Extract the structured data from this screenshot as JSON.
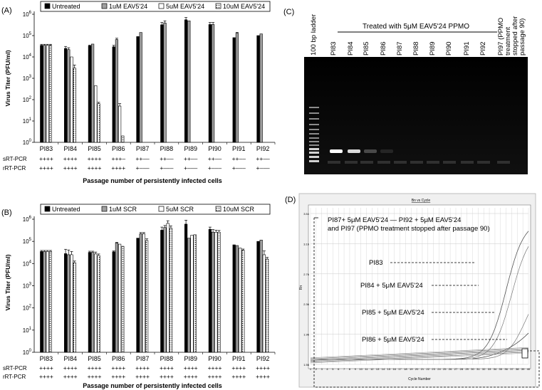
{
  "panel_a": {
    "letter": "(A)",
    "legend": [
      "Untreated",
      "1uM EAV5'24",
      "5uM EAV5'24",
      "10uM EAV5'24"
    ],
    "ylabel": "Virus Titer (PFU/ml)",
    "xlabel": "Passage number of persistently infected cells",
    "row_labels": [
      "sRT-PCR",
      "rRT-PCR"
    ],
    "s_rows": [
      "++++",
      "++++",
      "++++",
      "+++–",
      "++––",
      "++––",
      "++––",
      "++––",
      "++––",
      "++––"
    ],
    "r_rows": [
      "++++",
      "++++",
      "++++",
      "++++",
      "+–––",
      "+–––",
      "+–––",
      "+–––",
      "+–––",
      "+–––"
    ]
  },
  "panel_b": {
    "letter": "(B)",
    "legend": [
      "Untreated",
      "1uM SCR",
      "5uM SCR",
      "10uM SCR"
    ],
    "ylabel": "Virus Titer (PFU/ml)",
    "xlabel": "Passage number of persistently infected cells",
    "row_labels": [
      "sRT-PCR",
      "rRT-PCR"
    ],
    "s_rows": [
      "++++",
      "++++",
      "++++",
      "++++",
      "++++",
      "++++",
      "++++",
      "++++",
      "++++",
      "++++"
    ],
    "r_rows": [
      "++++",
      "++++",
      "++++",
      "++++",
      "++++",
      "++++",
      "++++",
      "++++",
      "++++",
      "++++"
    ]
  },
  "panel_c": {
    "letter": "(C)",
    "header": "Treated with 5μM EAV5'24 PPMO",
    "lanes": [
      "100 bp ladder",
      "PI83",
      "PI84",
      "PI85",
      "PI86",
      "PI87",
      "PI88",
      "PI89",
      "PI90",
      "PI91",
      "PI92",
      "PI97 (PPMO treatment stopped after passage 90)"
    ],
    "lane_last_lines": [
      "PI97 (PPMO",
      "treatment",
      "stopped after",
      "passage 90)"
    ]
  },
  "panel_d": {
    "letter": "(D)",
    "plot_title": "Bn vs Cycle",
    "xlabel": "Cycle Number",
    "ylabel": "Rn",
    "yticks": [
      "3.54",
      "3.16",
      "2.76",
      "2.36",
      "1.96",
      "1.56"
    ],
    "annotations": [
      "PI87+ 5μM EAV5'24 — PI92 + 5μM EAV5'24",
      "and PI97 (PPMO treatment stopped after passage 90)",
      "PI83",
      "PI84 + 5μM EAV5'24",
      "PI85 + 5μM EAV5'24",
      "PI86 + 5μM EAV5'24"
    ]
  },
  "chart_data": [
    {
      "type": "bar",
      "title": "",
      "ylabel": "Virus Titer (PFU/ml)",
      "xlabel": "Passage number of persistently infected cells",
      "yscale": "log",
      "ylim": [
        1,
        1000000
      ],
      "ytick_exponents": [
        0,
        1,
        2,
        3,
        4,
        5,
        6
      ],
      "categories": [
        "PI83",
        "PI84",
        "PI85",
        "PI86",
        "PI87",
        "PI88",
        "PI89",
        "PI90",
        "PI91",
        "PI92"
      ],
      "series": [
        {
          "name": "Untreated",
          "values": [
            35000,
            25000,
            33000,
            30000,
            90000,
            320000,
            550000,
            330000,
            80000,
            100000
          ],
          "errors": [
            4000,
            6000,
            3000,
            5000,
            0,
            90000,
            150000,
            80000,
            0,
            0
          ]
        },
        {
          "name": "1uM EAV5'24",
          "values": [
            35000,
            22000,
            40000,
            65000,
            140000,
            390000,
            490000,
            330000,
            130000,
            120000
          ],
          "errors": [
            4000,
            5000,
            0,
            10000,
            0,
            100000,
            0,
            80000,
            10000,
            0
          ]
        },
        {
          "name": "5uM EAV5'24",
          "values": [
            35000,
            10000,
            450,
            50,
            null,
            null,
            null,
            null,
            null,
            null
          ],
          "errors": [
            4000,
            0,
            0,
            15,
            0,
            0,
            0,
            0,
            0,
            0
          ]
        },
        {
          "name": "10uM EAV5'24",
          "values": [
            35000,
            3000,
            65,
            2,
            null,
            null,
            null,
            null,
            null,
            null
          ],
          "errors": [
            4000,
            1200,
            10,
            0,
            0,
            0,
            0,
            0,
            0,
            0
          ]
        }
      ],
      "legend_position": "top"
    },
    {
      "type": "bar",
      "title": "",
      "ylabel": "Virus Titer (PFU/ml)",
      "xlabel": "Passage number of persistently infected cells",
      "yscale": "log",
      "ylim": [
        1,
        1000000
      ],
      "ytick_exponents": [
        0,
        1,
        2,
        3,
        4,
        5,
        6
      ],
      "categories": [
        "PI83",
        "PI84",
        "PI85",
        "PI86",
        "PI87",
        "PI88",
        "PI89",
        "PI90",
        "PI91",
        "PI92"
      ],
      "series": [
        {
          "name": "Untreated",
          "values": [
            35000,
            28000,
            32000,
            34000,
            140000,
            320000,
            600000,
            350000,
            70000,
            100000
          ],
          "errors": [
            4000,
            16000,
            4000,
            3000,
            0,
            120000,
            300000,
            90000,
            0,
            0
          ]
        },
        {
          "name": "1uM SCR",
          "values": [
            35000,
            25000,
            32000,
            85000,
            220000,
            420000,
            140000,
            260000,
            65000,
            115000
          ],
          "errors": [
            4000,
            16000,
            4000,
            5000,
            30000,
            100000,
            0,
            80000,
            0,
            0
          ]
        },
        {
          "name": "5uM SCR",
          "values": [
            35000,
            25000,
            27000,
            75000,
            220000,
            650000,
            190000,
            260000,
            50000,
            25000
          ],
          "errors": [
            4000,
            10000,
            6000,
            0,
            30000,
            200000,
            0,
            60000,
            0,
            12000
          ]
        },
        {
          "name": "10uM SCR",
          "values": [
            35000,
            11000,
            23000,
            60000,
            110000,
            400000,
            200000,
            260000,
            40000,
            16000
          ],
          "errors": [
            4000,
            2000,
            4000,
            0,
            20000,
            100000,
            0,
            50000,
            5000,
            3000
          ]
        }
      ],
      "legend_position": "top"
    }
  ]
}
